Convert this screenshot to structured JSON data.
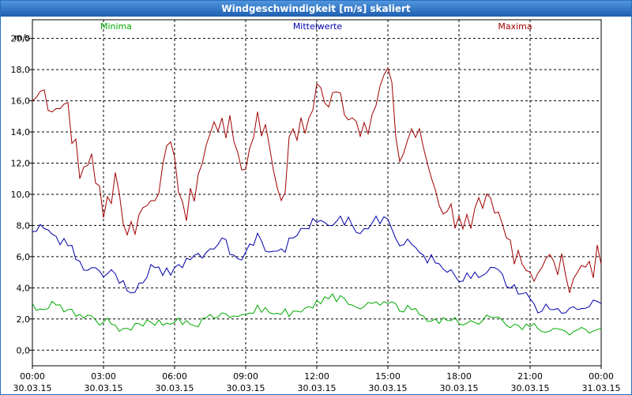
{
  "window": {
    "title": "Windgeschwindigkeit [m/s] skaliert"
  },
  "chart_data": {
    "type": "line",
    "title": "Windgeschwindigkeit [m/s] skaliert",
    "ylabel": "m/s",
    "xlabel": "",
    "ylim": [
      -1,
      21.2
    ],
    "xlim": [
      0,
      24
    ],
    "grid": true,
    "legend_position": "top",
    "y_ticks": [
      "0,0",
      "2,0",
      "4,0",
      "6,0",
      "8,0",
      "10,0",
      "12,0",
      "14,0",
      "16,0",
      "18,0",
      "20,0"
    ],
    "y_tick_values": [
      0,
      2,
      4,
      6,
      8,
      10,
      12,
      14,
      16,
      18,
      20
    ],
    "x_ticks": [
      {
        "time": "00:00",
        "date": "30.03.15"
      },
      {
        "time": "03:00",
        "date": "30.03.15"
      },
      {
        "time": "06:00",
        "date": "30.03.15"
      },
      {
        "time": "09:00",
        "date": "30.03.15"
      },
      {
        "time": "12:00",
        "date": "30.03.15"
      },
      {
        "time": "15:00",
        "date": "30.03.15"
      },
      {
        "time": "18:00",
        "date": "30.03.15"
      },
      {
        "time": "21:00",
        "date": "30.03.15"
      },
      {
        "time": "00:00",
        "date": "31.03.15"
      }
    ],
    "x_tick_hours": [
      0,
      3,
      6,
      9,
      12,
      15,
      18,
      21,
      24
    ],
    "series": [
      {
        "name": "Maxima",
        "color": "#a00000",
        "x": [
          0,
          0.5,
          1,
          1.5,
          2,
          2.5,
          3,
          3.5,
          4,
          4.5,
          5,
          5.5,
          6,
          6.5,
          7,
          7.5,
          8,
          8.5,
          9,
          9.5,
          10,
          10.5,
          11,
          11.5,
          12,
          12.5,
          13,
          13.5,
          14,
          14.5,
          15,
          15.5,
          16,
          16.5,
          17,
          17.5,
          18,
          18.5,
          19,
          19.5,
          20,
          20.5,
          21,
          21.5,
          22,
          22.5,
          23,
          23.5,
          24
        ],
        "values": [
          16.0,
          16.7,
          15.5,
          15.9,
          11.0,
          12.6,
          8.5,
          11.4,
          7.4,
          8.7,
          9.6,
          11.9,
          12.4,
          8.3,
          11.3,
          13.9,
          14.9,
          13.4,
          11.6,
          15.3,
          13.1,
          9.6,
          14.2,
          13.9,
          17.1,
          15.6,
          16.5,
          14.9,
          14.6,
          15.7,
          18.1,
          12.1,
          14.2,
          13.0,
          10.3,
          8.9,
          8.6,
          7.8,
          9.1,
          8.8,
          7.2,
          6.4,
          5.0,
          5.3,
          5.7,
          4.8,
          5.0,
          5.7,
          5.5
        ]
      },
      {
        "name": "Mittelwerte",
        "color": "#0000aa",
        "x": [
          0,
          0.5,
          1,
          1.5,
          2,
          2.5,
          3,
          3.5,
          4,
          4.5,
          5,
          5.5,
          6,
          6.5,
          7,
          7.5,
          8,
          8.5,
          9,
          9.5,
          10,
          10.5,
          11,
          11.5,
          12,
          12.5,
          13,
          13.5,
          14,
          14.5,
          15,
          15.5,
          16,
          16.5,
          17,
          17.5,
          18,
          18.5,
          19,
          19.5,
          20,
          20.5,
          21,
          21.5,
          22,
          22.5,
          23,
          23.5,
          24
        ],
        "values": [
          7.6,
          7.8,
          7.3,
          6.7,
          5.7,
          5.3,
          4.7,
          4.9,
          3.8,
          4.3,
          5.5,
          4.8,
          5.3,
          5.9,
          6.2,
          6.5,
          7.2,
          6.1,
          6.3,
          7.5,
          6.3,
          6.5,
          7.2,
          7.8,
          8.2,
          8.0,
          8.6,
          8.0,
          7.8,
          8.6,
          8.4,
          6.7,
          6.8,
          6.1,
          5.6,
          5.0,
          4.4,
          4.6,
          4.8,
          5.3,
          4.1,
          3.6,
          3.3,
          2.5,
          2.6,
          2.4,
          2.6,
          2.8,
          3.0
        ]
      },
      {
        "name": "Minima",
        "color": "#00aa00",
        "x": [
          0,
          0.5,
          1,
          1.5,
          2,
          2.5,
          3,
          3.5,
          4,
          4.5,
          5,
          5.5,
          6,
          6.5,
          7,
          7.5,
          8,
          8.5,
          9,
          9.5,
          10,
          10.5,
          11,
          11.5,
          12,
          12.5,
          13,
          13.5,
          14,
          14.5,
          15,
          15.5,
          16,
          16.5,
          17,
          17.5,
          18,
          18.5,
          19,
          19.5,
          20,
          20.5,
          21,
          21.5,
          22,
          22.5,
          23,
          23.5,
          24
        ],
        "values": [
          3.0,
          2.6,
          2.9,
          2.6,
          2.3,
          2.2,
          1.8,
          1.6,
          1.4,
          1.7,
          1.8,
          1.6,
          1.8,
          1.9,
          1.5,
          2.3,
          2.4,
          2.2,
          2.3,
          2.9,
          2.4,
          2.3,
          2.5,
          2.7,
          3.2,
          3.3,
          3.5,
          2.9,
          2.8,
          3.1,
          3.0,
          2.5,
          2.6,
          2.2,
          2.0,
          1.9,
          1.7,
          1.9,
          1.9,
          2.1,
          1.6,
          1.6,
          1.5,
          1.2,
          1.4,
          1.2,
          1.3,
          1.1,
          1.4
        ]
      }
    ]
  }
}
